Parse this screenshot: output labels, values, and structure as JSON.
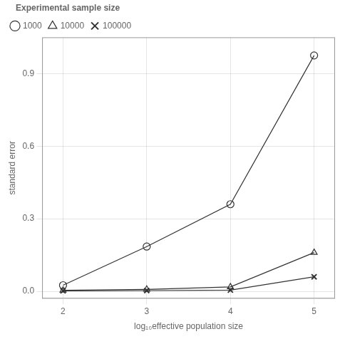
{
  "chart_data": {
    "type": "line",
    "xlabel": "log₁₀effective population size",
    "ylabel": "standard error",
    "legend_title": "Experimental sample size",
    "x": [
      2,
      3,
      4,
      5
    ],
    "series": [
      {
        "name": "1000",
        "color": "#333333",
        "marker": "circle",
        "values": [
          0.025,
          0.185,
          0.36,
          0.975
        ]
      },
      {
        "name": "10000",
        "color": "#333333",
        "marker": "triangle",
        "values": [
          0.004,
          0.008,
          0.018,
          0.16
        ]
      },
      {
        "name": "100000",
        "color": "#333333",
        "marker": "x",
        "values": [
          0.002,
          0.003,
          0.005,
          0.06
        ]
      }
    ],
    "xlim": [
      1.75,
      5.25
    ],
    "xticks": [
      2,
      3,
      4,
      5
    ],
    "ylim": [
      -0.03,
      1.05
    ],
    "yticks": [
      {
        "value": 0.0,
        "label": "0.0"
      },
      0.3,
      0.6,
      0.9
    ],
    "grid": true,
    "legend": "upper left"
  }
}
